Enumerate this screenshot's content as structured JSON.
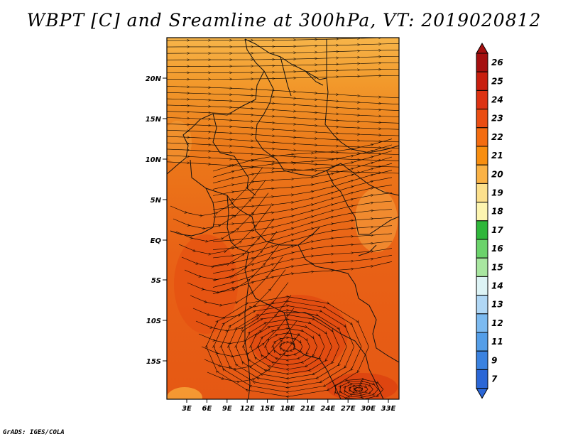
{
  "title": "WBPT [C] and Sreamline at 300hPa, VT: 2019020812",
  "credit": "GrADS: IGES/COLA",
  "map": {
    "lat_labels": [
      "20N",
      "15N",
      "10N",
      "5N",
      "EQ",
      "5S",
      "10S",
      "15S"
    ],
    "lon_labels": [
      "3E",
      "6E",
      "9E",
      "12E",
      "15E",
      "18E",
      "21E",
      "24E",
      "27E",
      "30E",
      "33E"
    ]
  },
  "colorbar": {
    "labels": [
      "26",
      "25",
      "24",
      "23",
      "22",
      "21",
      "20",
      "19",
      "18",
      "17",
      "16",
      "15",
      "14",
      "13",
      "12",
      "11",
      "9",
      "7"
    ],
    "colors": [
      "#a50f0f",
      "#c81e0e",
      "#dd3212",
      "#ea4d12",
      "#f46c10",
      "#f88e0f",
      "#fab245",
      "#fce08c",
      "#fdf5b0",
      "#2fb73b",
      "#6bd36b",
      "#a8e6a0",
      "#ddf3f5",
      "#b0d7f5",
      "#7cbaf0",
      "#549ee8",
      "#3a82e0",
      "#2a66d6"
    ],
    "min_arrow": "#2a66d6",
    "max_arrow": "#a50f0f"
  }
}
